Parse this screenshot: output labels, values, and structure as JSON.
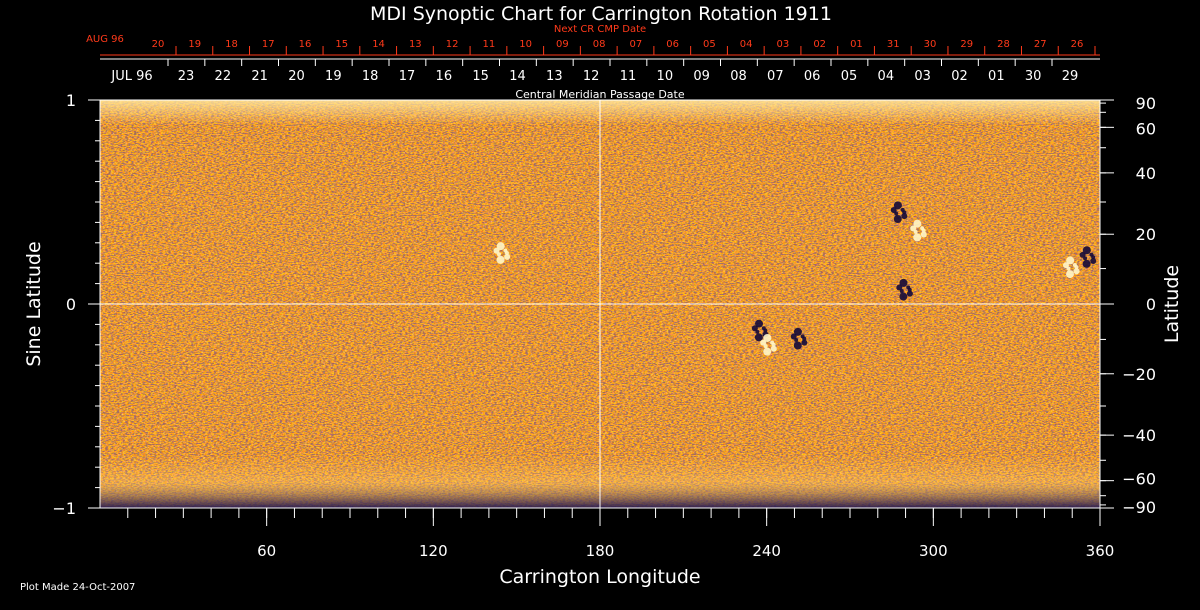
{
  "chart_data": {
    "type": "heatmap",
    "title": "MDI Synoptic Chart for Carrington Rotation 1911",
    "xlabel": "Carrington Longitude",
    "ylabel_left": "Sine Latitude",
    "ylabel_right": "Latitude",
    "xlim": [
      0,
      360
    ],
    "ylim": [
      -1,
      1
    ],
    "x_ticks": [
      "60",
      "120",
      "180",
      "240",
      "300",
      "360"
    ],
    "x_tick_values": [
      60,
      120,
      180,
      240,
      300,
      360
    ],
    "y_left_ticks": [
      "1",
      "0",
      "−1"
    ],
    "y_left_tick_values": [
      1,
      0,
      -1
    ],
    "y_right_ticks": [
      "90",
      "60",
      "40",
      "20",
      "0",
      "−20",
      "−40",
      "−60",
      "−90"
    ],
    "y_right_tick_degrees": [
      90,
      60,
      40,
      20,
      0,
      -20,
      -40,
      -60,
      -90
    ],
    "next_cr_label": "Next CR CMP Date",
    "next_cr_month": "AUG 96",
    "next_cr_dates": [
      "20",
      "19",
      "18",
      "17",
      "16",
      "15",
      "14",
      "13",
      "12",
      "11",
      "10",
      "09",
      "08",
      "07",
      "06",
      "05",
      "04",
      "03",
      "02",
      "01",
      "31",
      "30",
      "29",
      "28",
      "27",
      "26"
    ],
    "cmp_label": "Central Meridian Passage Date",
    "cmp_month": "JUL 96",
    "cmp_dates": [
      "23",
      "22",
      "21",
      "20",
      "19",
      "18",
      "17",
      "16",
      "15",
      "14",
      "13",
      "12",
      "11",
      "10",
      "09",
      "08",
      "07",
      "06",
      "05",
      "04",
      "03",
      "02",
      "01",
      "30",
      "29"
    ],
    "crosshair": {
      "longitude": 180,
      "sine_latitude": 0
    },
    "colors": {
      "background_field": "#ff4a00",
      "positive": "#ffe07a",
      "negative": "#1a1040",
      "axis": "#ffffff",
      "date_red": "#ff3a1a"
    },
    "active_regions": [
      {
        "lon": 288,
        "sinlat": 0.45,
        "polarity": "negative"
      },
      {
        "lon": 295,
        "sinlat": 0.36,
        "polarity": "positive"
      },
      {
        "lon": 238,
        "sinlat": -0.13,
        "polarity": "negative"
      },
      {
        "lon": 241,
        "sinlat": -0.2,
        "polarity": "positive"
      },
      {
        "lon": 252,
        "sinlat": -0.17,
        "polarity": "negative"
      },
      {
        "lon": 350,
        "sinlat": 0.18,
        "polarity": "positive"
      },
      {
        "lon": 356,
        "sinlat": 0.23,
        "polarity": "negative"
      },
      {
        "lon": 145,
        "sinlat": 0.25,
        "polarity": "positive"
      },
      {
        "lon": 290,
        "sinlat": 0.07,
        "polarity": "negative"
      }
    ]
  },
  "footer": {
    "plot_made": "Plot Made 24-Oct-2007"
  }
}
